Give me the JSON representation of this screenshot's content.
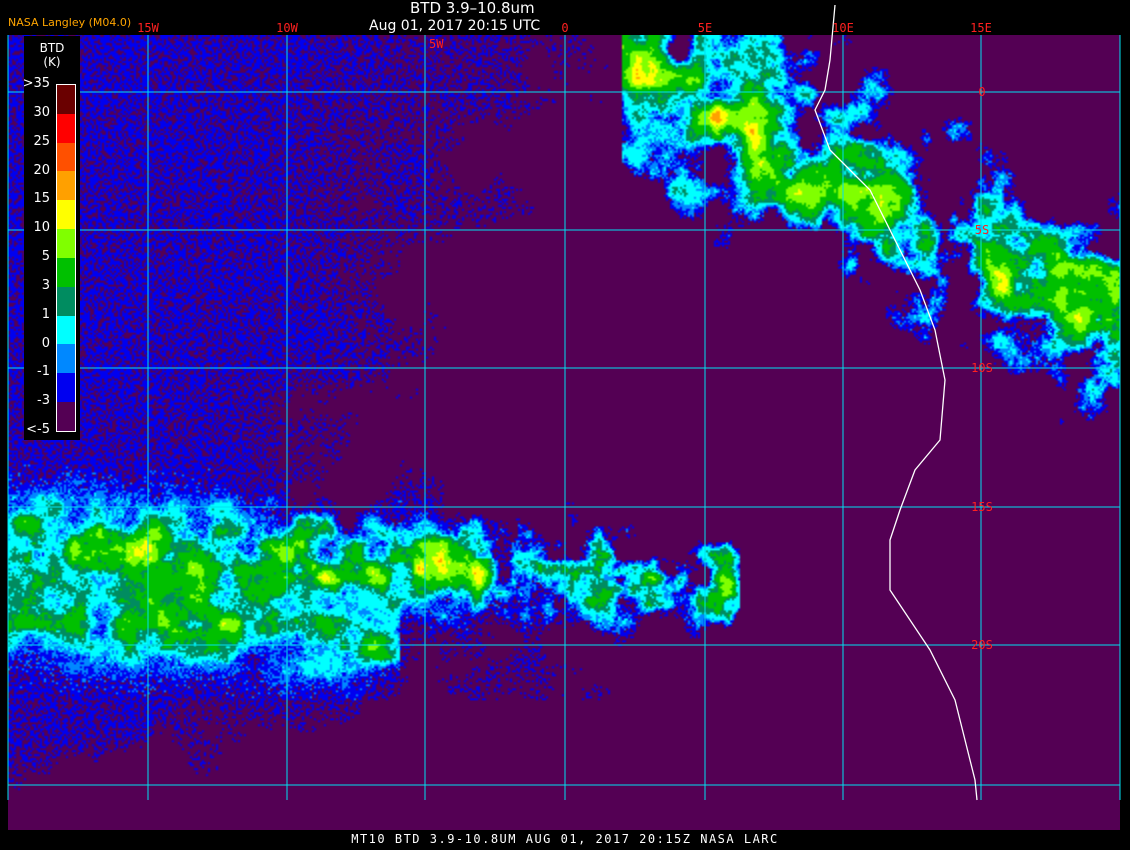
{
  "header": {
    "product_title": "BTD 3.9–10.8um",
    "datetime": "Aug 01, 2017 20:15 UTC",
    "brand": "NASA Langley (M04.0)"
  },
  "footer": {
    "caption": "MT10  BTD 3.9-10.8UM   AUG 01, 2017 20:15Z   NASA LARC"
  },
  "map": {
    "longitude_labels": [
      "15W",
      "10W",
      "5W",
      "0",
      "5E",
      "10E",
      "15E"
    ],
    "latitude_labels": [
      "0",
      "5S",
      "10S",
      "15S",
      "20S"
    ],
    "grid_color": "#00e0f0",
    "coastline_color": "#ffffff",
    "label_color": "#ff2020"
  },
  "legend": {
    "title": "BTD",
    "unit": "(K)",
    "labels": [
      ">35",
      "30",
      "25",
      "20",
      "15",
      "10",
      "5",
      "3",
      "1",
      "0",
      "-1",
      "-3",
      "<-5"
    ],
    "colors": [
      "#6a0000",
      "#ff0000",
      "#ff5000",
      "#ffa000",
      "#ffff00",
      "#80ff00",
      "#00c000",
      "#008c60",
      "#00ffff",
      "#0088ff",
      "#0000f0",
      "#540054"
    ]
  }
}
